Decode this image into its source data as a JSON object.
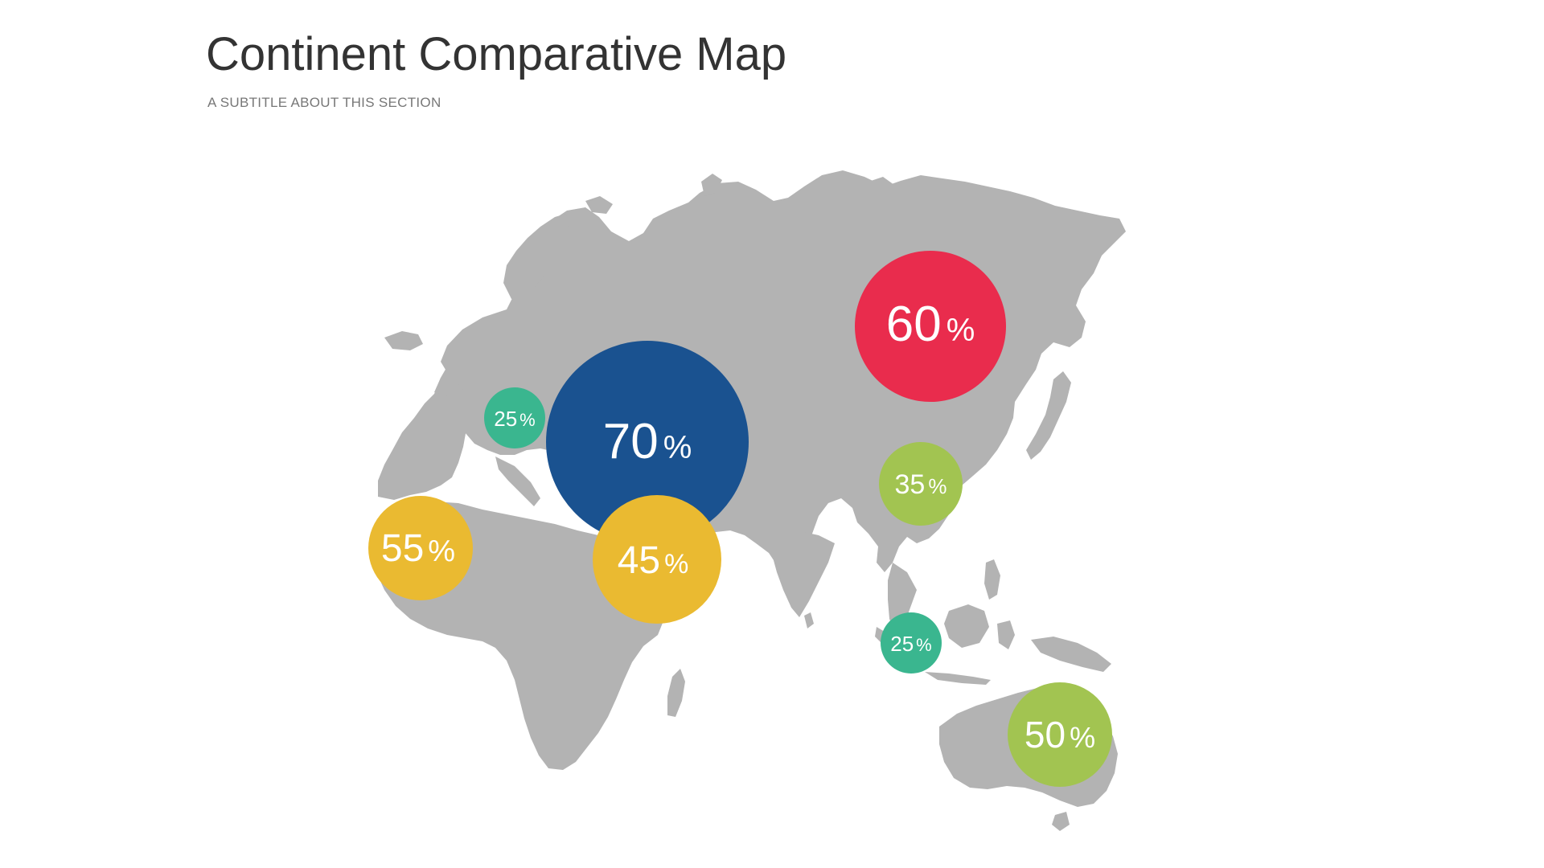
{
  "header": {
    "title": "Continent Comparative Map",
    "subtitle": "A SUBTITLE ABOUT THIS SECTION"
  },
  "colors": {
    "land": "#b3b3b3",
    "blue": "#1a5290",
    "red": "#e92c4d",
    "teal": "#3ab68f",
    "yellow": "#eaba31",
    "green": "#a2c451"
  },
  "bubbles": [
    {
      "id": "western-europe",
      "value": "25",
      "unit": "%",
      "color": "#3ab68f"
    },
    {
      "id": "eastern-europe",
      "value": "70",
      "unit": "%",
      "color": "#1a5290"
    },
    {
      "id": "east-asia-north",
      "value": "60",
      "unit": "%",
      "color": "#e92c4d"
    },
    {
      "id": "china",
      "value": "35",
      "unit": "%",
      "color": "#a2c451"
    },
    {
      "id": "north-africa",
      "value": "55",
      "unit": "%",
      "color": "#eaba31"
    },
    {
      "id": "middle-east",
      "value": "45",
      "unit": "%",
      "color": "#eaba31"
    },
    {
      "id": "southeast-asia",
      "value": "25",
      "unit": "%",
      "color": "#3ab68f"
    },
    {
      "id": "australia",
      "value": "50",
      "unit": "%",
      "color": "#a2c451"
    }
  ]
}
